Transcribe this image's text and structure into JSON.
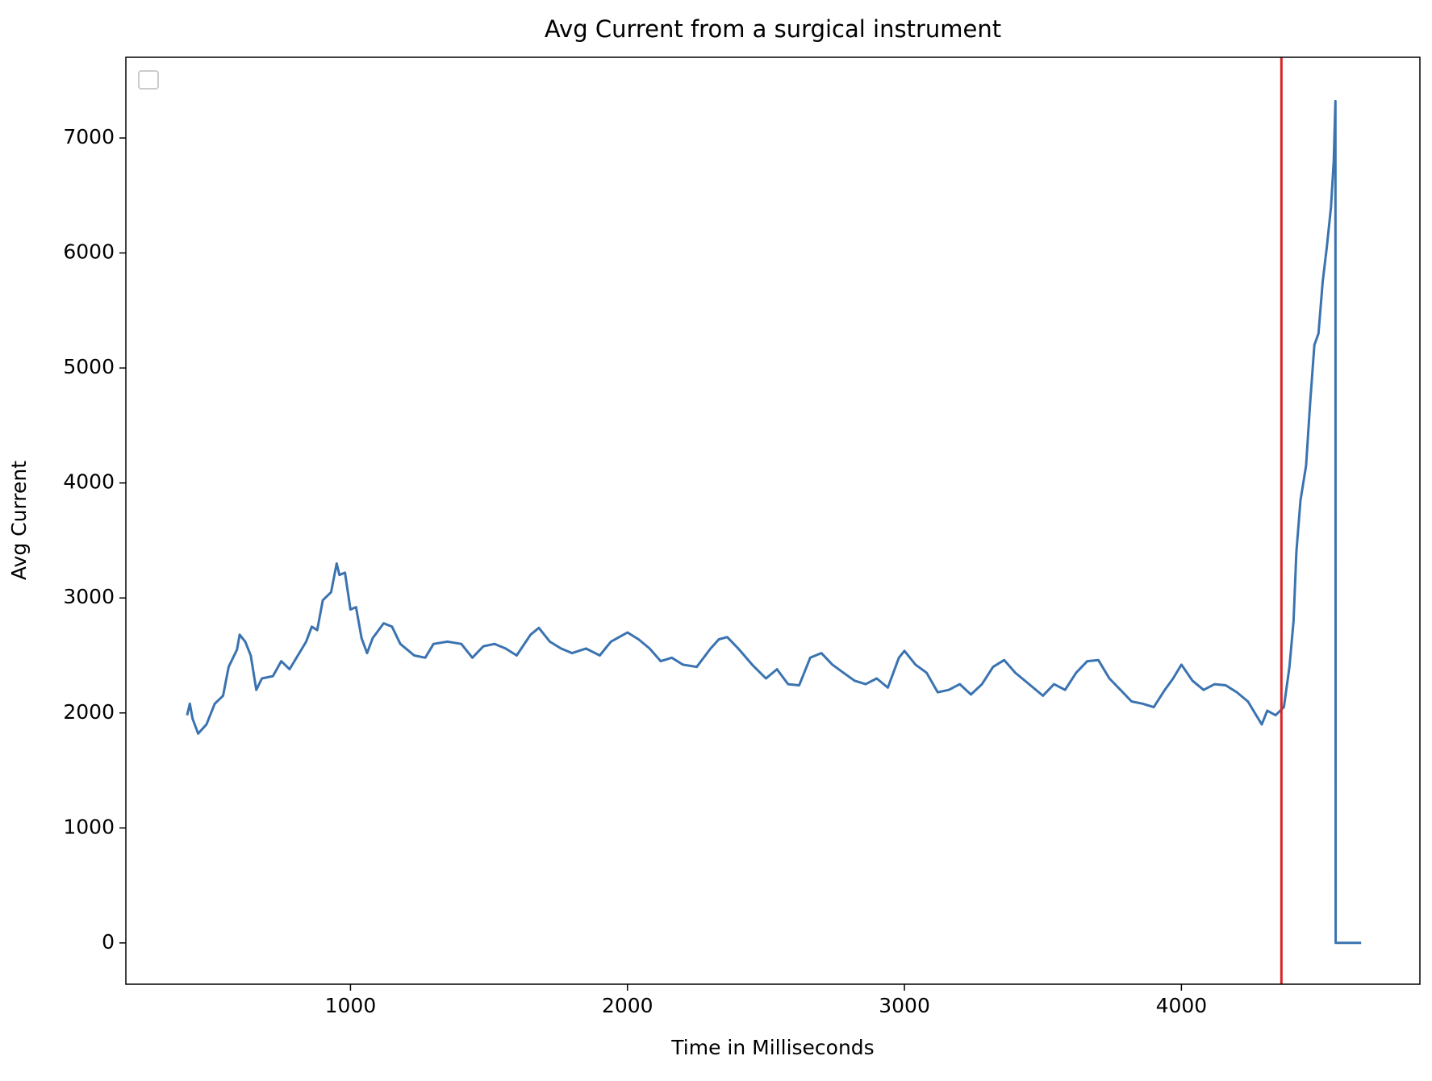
{
  "chart_data": {
    "type": "line",
    "title": "Avg Current from a surgical instrument",
    "xlabel": "Time in Milliseconds",
    "ylabel": "Avg Current",
    "xlim": [
      189,
      4861
    ],
    "ylim": [
      -359,
      7702
    ],
    "xticks": [
      1000,
      2000,
      3000,
      4000
    ],
    "yticks": [
      0,
      1000,
      2000,
      3000,
      4000,
      5000,
      6000,
      7000
    ],
    "vline": {
      "x": 4361,
      "color": "#d62728"
    },
    "series": [
      {
        "color": "#3a73b0",
        "x": [
          410,
          420,
          430,
          450,
          480,
          510,
          540,
          560,
          590,
          600,
          620,
          640,
          660,
          680,
          720,
          750,
          780,
          810,
          840,
          860,
          880,
          900,
          930,
          950,
          960,
          980,
          1000,
          1020,
          1040,
          1060,
          1080,
          1120,
          1150,
          1180,
          1230,
          1270,
          1300,
          1350,
          1400,
          1440,
          1480,
          1520,
          1560,
          1600,
          1650,
          1680,
          1720,
          1760,
          1800,
          1850,
          1900,
          1940,
          2000,
          2040,
          2080,
          2120,
          2160,
          2200,
          2250,
          2300,
          2330,
          2360,
          2400,
          2450,
          2500,
          2540,
          2580,
          2620,
          2660,
          2700,
          2740,
          2780,
          2820,
          2860,
          2900,
          2940,
          2980,
          3000,
          3040,
          3080,
          3120,
          3160,
          3200,
          3240,
          3280,
          3320,
          3360,
          3400,
          3450,
          3500,
          3540,
          3580,
          3620,
          3660,
          3700,
          3740,
          3780,
          3820,
          3860,
          3900,
          3940,
          3970,
          4000,
          4040,
          4080,
          4120,
          4160,
          4200,
          4240,
          4270,
          4290,
          4310,
          4340,
          4370,
          4390,
          4405,
          4415,
          4430,
          4450,
          4465,
          4480,
          4495,
          4510,
          4525,
          4540,
          4550,
          4556,
          4557,
          4649
        ],
        "values": [
          1980,
          2080,
          1950,
          1820,
          1900,
          2080,
          2150,
          2400,
          2550,
          2680,
          2620,
          2500,
          2200,
          2300,
          2320,
          2450,
          2380,
          2500,
          2620,
          2750,
          2720,
          2980,
          3050,
          3300,
          3200,
          3220,
          2900,
          2920,
          2650,
          2520,
          2650,
          2780,
          2750,
          2600,
          2500,
          2480,
          2600,
          2620,
          2600,
          2480,
          2580,
          2600,
          2560,
          2500,
          2680,
          2740,
          2620,
          2560,
          2520,
          2560,
          2500,
          2620,
          2700,
          2640,
          2560,
          2450,
          2480,
          2420,
          2400,
          2560,
          2640,
          2660,
          2560,
          2420,
          2300,
          2380,
          2250,
          2240,
          2480,
          2520,
          2420,
          2350,
          2280,
          2250,
          2300,
          2220,
          2480,
          2540,
          2420,
          2350,
          2180,
          2200,
          2250,
          2160,
          2250,
          2400,
          2460,
          2350,
          2250,
          2150,
          2250,
          2200,
          2350,
          2450,
          2460,
          2300,
          2200,
          2100,
          2080,
          2050,
          2200,
          2300,
          2420,
          2280,
          2200,
          2250,
          2240,
          2180,
          2100,
          1980,
          1900,
          2020,
          1980,
          2050,
          2400,
          2800,
          3400,
          3850,
          4150,
          4700,
          5200,
          5300,
          5750,
          6050,
          6400,
          6800,
          7320,
          0,
          0
        ]
      }
    ]
  }
}
